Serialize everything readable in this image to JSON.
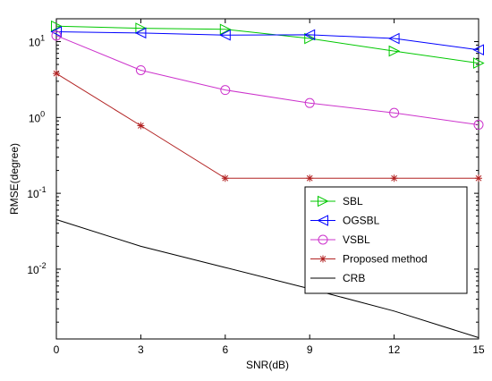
{
  "chart_data": {
    "type": "line",
    "title": "",
    "xlabel": "SNR(dB)",
    "ylabel": "RMSE(degree)",
    "x": [
      0,
      3,
      6,
      9,
      12,
      15
    ],
    "x_ticks": [
      "0",
      "3",
      "6",
      "9",
      "12",
      "15"
    ],
    "xlim": [
      0,
      15
    ],
    "yscale": "log",
    "ylim": [
      0.0012,
      20
    ],
    "y_ticks": [
      {
        "value": 0.01,
        "base": "10",
        "exp": "-2"
      },
      {
        "value": 0.1,
        "base": "10",
        "exp": "-1"
      },
      {
        "value": 1,
        "base": "10",
        "exp": "0"
      },
      {
        "value": 10,
        "base": "10",
        "exp": "1"
      }
    ],
    "grid": false,
    "legend_position": "lower-right",
    "series": [
      {
        "name": "SBL",
        "values": [
          16,
          15,
          14.5,
          11,
          7.5,
          5.2
        ],
        "color": "#00c800",
        "marker": "triangle-right"
      },
      {
        "name": "OGSBL",
        "values": [
          13.5,
          13,
          12.2,
          12.3,
          11,
          7.8
        ],
        "color": "#0000ff",
        "marker": "triangle-left"
      },
      {
        "name": "VSBL",
        "values": [
          12,
          4.2,
          2.3,
          1.55,
          1.15,
          0.8
        ],
        "color": "#cc33cc",
        "marker": "circle"
      },
      {
        "name": "Proposed method",
        "values": [
          3.8,
          0.78,
          0.158,
          0.158,
          0.158,
          0.158
        ],
        "color": "#b22222",
        "marker": "star"
      },
      {
        "name": "CRB",
        "values": [
          0.045,
          0.02,
          0.0105,
          0.0055,
          0.0028,
          0.00125
        ],
        "color": "#000000",
        "marker": "none"
      }
    ]
  }
}
